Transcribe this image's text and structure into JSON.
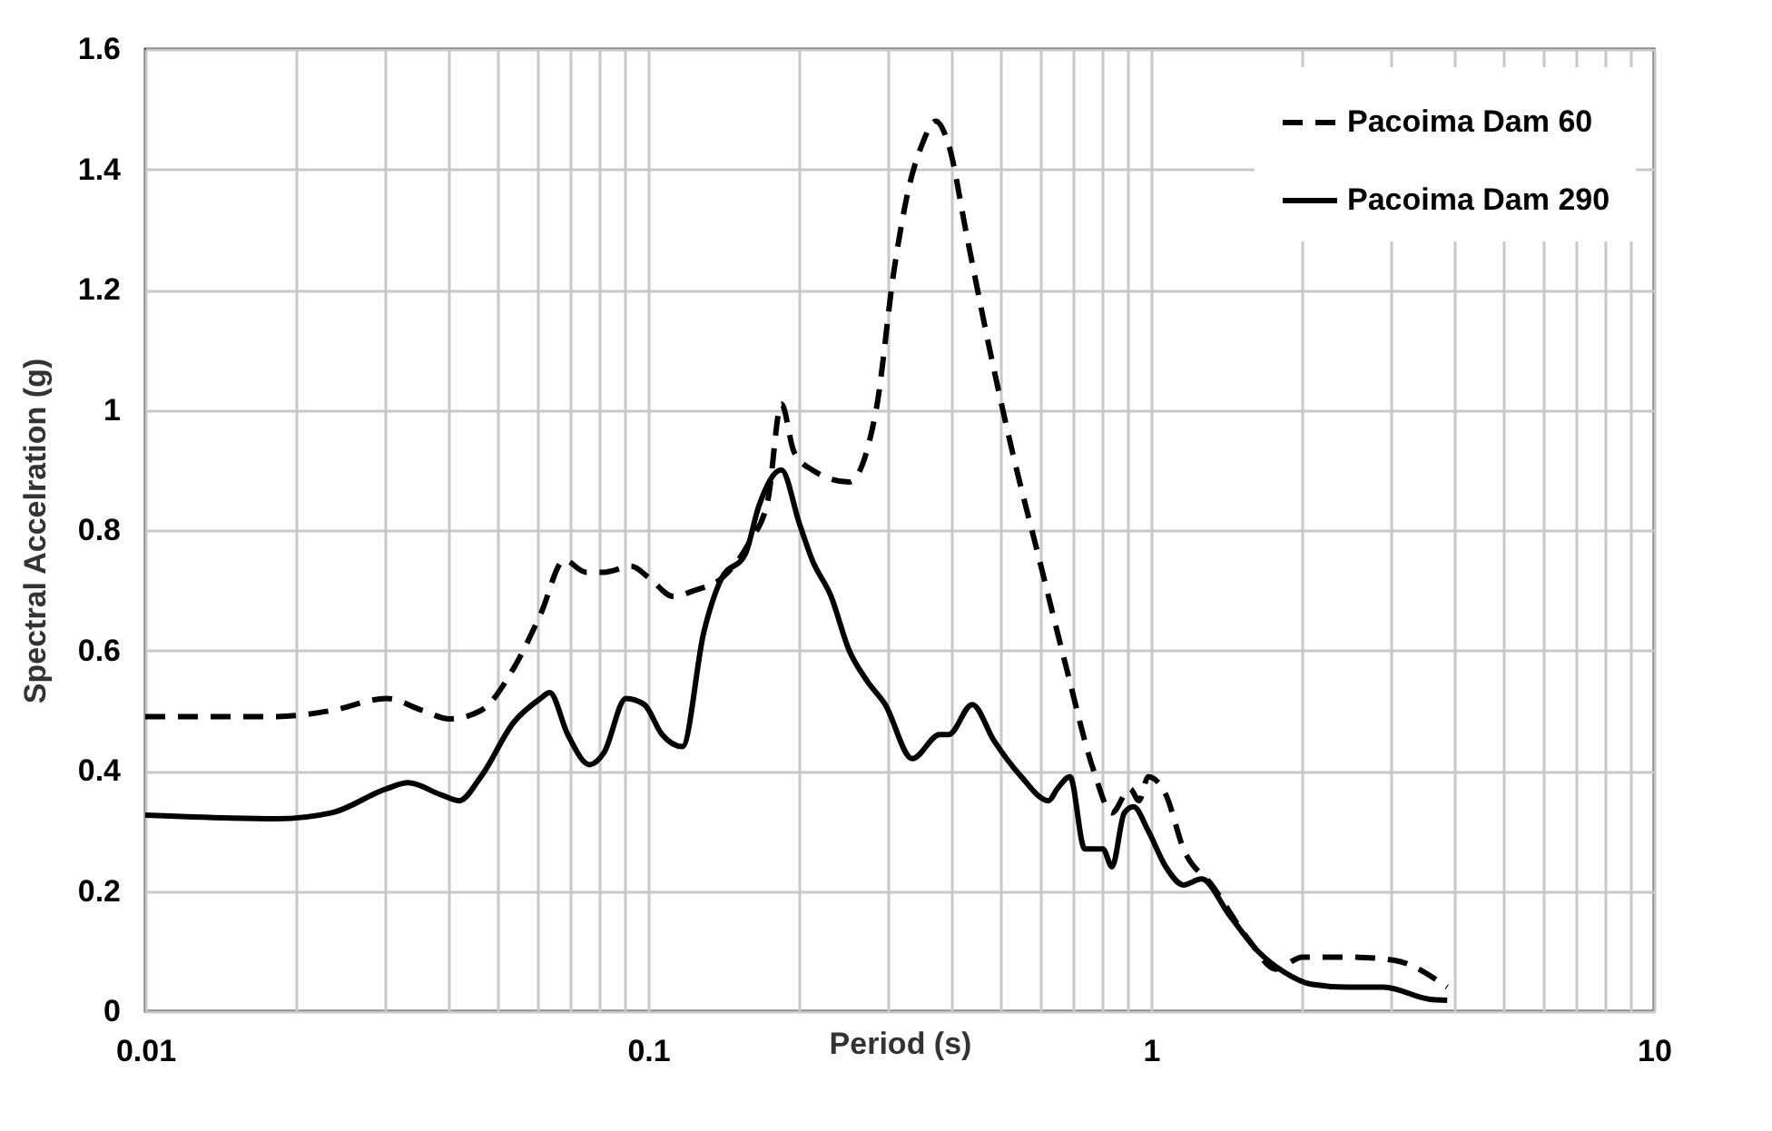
{
  "chart_data": {
    "type": "line",
    "xlabel": "Period (s)",
    "ylabel": "Spectral Accelration (g)",
    "log": "x",
    "grid": true,
    "legend": "top right",
    "xlim": [
      0.01,
      10
    ],
    "ylim": [
      0,
      1.6
    ],
    "xticks": [
      0.01,
      {
        "value": 0.02,
        "label": null
      },
      {
        "value": 0.03,
        "label": null
      },
      {
        "value": 0.04,
        "label": null
      },
      {
        "value": 0.05,
        "label": null
      },
      {
        "value": 0.06,
        "label": null
      },
      {
        "value": 0.07,
        "label": null
      },
      {
        "value": 0.08,
        "label": null
      },
      {
        "value": 0.09,
        "label": null
      },
      0.1,
      {
        "value": 0.2,
        "label": null
      },
      {
        "value": 0.3,
        "label": null
      },
      {
        "value": 0.4,
        "label": null
      },
      {
        "value": 0.5,
        "label": null
      },
      {
        "value": 0.6,
        "label": null
      },
      {
        "value": 0.7,
        "label": null
      },
      {
        "value": 0.8,
        "label": null
      },
      {
        "value": 0.9,
        "label": null
      },
      1,
      {
        "value": 2,
        "label": null
      },
      {
        "value": 3,
        "label": null
      },
      {
        "value": 4,
        "label": null
      },
      {
        "value": 5,
        "label": null
      },
      {
        "value": 6,
        "label": null
      },
      {
        "value": 7,
        "label": null
      },
      {
        "value": 8,
        "label": null
      },
      {
        "value": 9,
        "label": null
      },
      10
    ],
    "yticks": [
      0,
      0.2,
      0.4,
      0.6,
      0.8,
      1,
      1.2,
      1.4,
      1.6
    ],
    "series": [
      {
        "name": "Pacoima Dam 60",
        "color": "#000000",
        "line_style": "dashed",
        "x": [
          0.01,
          0.0183,
          0.0235,
          0.0302,
          0.0356,
          0.0403,
          0.0465,
          0.054,
          0.0611,
          0.0681,
          0.0752,
          0.0817,
          0.0925,
          0.1006,
          0.112,
          0.124,
          0.14,
          0.159,
          0.173,
          0.184,
          0.195,
          0.212,
          0.251,
          0.284,
          0.308,
          0.33,
          0.35,
          0.373,
          0.396,
          0.43,
          0.475,
          0.53,
          0.6,
          0.679,
          0.769,
          0.836,
          0.908,
          0.946,
          0.987,
          1.07,
          1.16,
          1.32,
          1.56,
          1.77,
          2.0,
          2.46,
          3.03,
          3.88
        ],
        "values": [
          0.49,
          0.49,
          0.5,
          0.52,
          0.5,
          0.486,
          0.5,
          0.57,
          0.66,
          0.75,
          0.73,
          0.73,
          0.74,
          0.72,
          0.69,
          0.7,
          0.72,
          0.78,
          0.85,
          1.01,
          0.93,
          0.9,
          0.88,
          1.0,
          1.23,
          1.37,
          1.44,
          1.48,
          1.44,
          1.29,
          1.11,
          0.93,
          0.75,
          0.57,
          0.4,
          0.33,
          0.37,
          0.35,
          0.39,
          0.36,
          0.27,
          0.21,
          0.12,
          0.07,
          0.09,
          0.09,
          0.085,
          0.04
        ]
      },
      {
        "name": "Pacoima Dam 290",
        "color": "#000000",
        "line_style": "solid",
        "x": [
          0.01,
          0.0183,
          0.0235,
          0.0302,
          0.0333,
          0.0387,
          0.0421,
          0.0465,
          0.054,
          0.0611,
          0.0637,
          0.0692,
          0.0765,
          0.0817,
          0.0903,
          0.0982,
          0.1066,
          0.117,
          0.129,
          0.14,
          0.156,
          0.166,
          0.184,
          0.2,
          0.212,
          0.231,
          0.251,
          0.272,
          0.296,
          0.335,
          0.38,
          0.396,
          0.441,
          0.487,
          0.552,
          0.625,
          0.651,
          0.69,
          0.738,
          0.802,
          0.836,
          0.885,
          0.923,
          0.987,
          1.07,
          1.16,
          1.26,
          1.43,
          1.63,
          1.84,
          2.08,
          2.46,
          2.9,
          3.57,
          3.88
        ],
        "values": [
          0.326,
          0.32,
          0.33,
          0.37,
          0.38,
          0.36,
          0.35,
          0.39,
          0.48,
          0.52,
          0.53,
          0.46,
          0.41,
          0.43,
          0.52,
          0.51,
          0.46,
          0.44,
          0.63,
          0.72,
          0.76,
          0.84,
          0.9,
          0.81,
          0.75,
          0.69,
          0.6,
          0.55,
          0.51,
          0.42,
          0.46,
          0.46,
          0.51,
          0.45,
          0.39,
          0.35,
          0.37,
          0.39,
          0.27,
          0.27,
          0.24,
          0.33,
          0.34,
          0.3,
          0.24,
          0.21,
          0.22,
          0.16,
          0.1,
          0.065,
          0.045,
          0.04,
          0.04,
          0.02,
          0.018
        ]
      }
    ]
  }
}
